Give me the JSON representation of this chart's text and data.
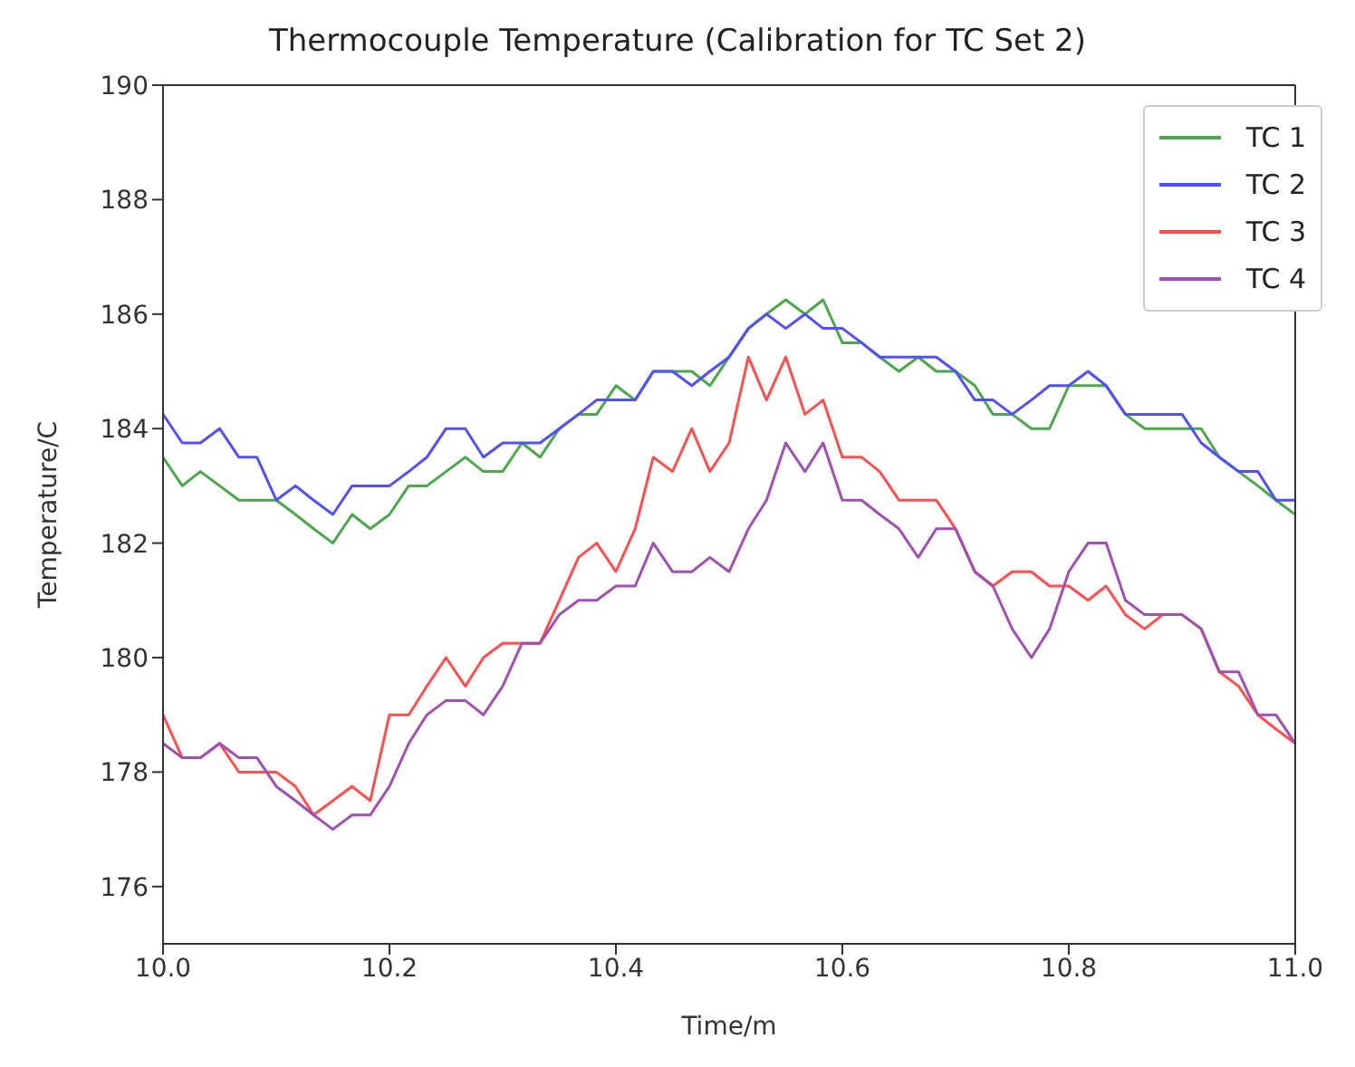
{
  "chart_data": {
    "type": "line",
    "title": "Thermocouple Temperature (Calibration for TC Set 2)",
    "xlabel": "Time/m",
    "ylabel": "Temperature/C",
    "x": [
      10.0,
      10.017,
      10.033,
      10.05,
      10.067,
      10.083,
      10.1,
      10.117,
      10.133,
      10.15,
      10.167,
      10.183,
      10.2,
      10.217,
      10.233,
      10.25,
      10.267,
      10.283,
      10.3,
      10.317,
      10.333,
      10.35,
      10.367,
      10.383,
      10.4,
      10.417,
      10.433,
      10.45,
      10.467,
      10.483,
      10.5,
      10.517,
      10.533,
      10.55,
      10.567,
      10.583,
      10.6,
      10.617,
      10.633,
      10.65,
      10.667,
      10.683,
      10.7,
      10.717,
      10.733,
      10.75,
      10.767,
      10.783,
      10.8,
      10.817,
      10.833,
      10.85,
      10.867,
      10.883,
      10.9,
      10.917,
      10.933,
      10.95,
      10.967,
      10.983,
      11.0
    ],
    "series": [
      {
        "name": "TC 1",
        "color": "#4ca64c",
        "values": [
          183.5,
          183.0,
          183.25,
          183.0,
          182.75,
          182.75,
          182.75,
          182.5,
          182.25,
          182.0,
          182.5,
          182.25,
          182.5,
          183.0,
          183.0,
          183.25,
          183.5,
          183.25,
          183.25,
          183.75,
          183.5,
          184.0,
          184.25,
          184.25,
          184.75,
          184.5,
          185.0,
          185.0,
          185.0,
          184.75,
          185.25,
          185.75,
          186.0,
          186.25,
          186.0,
          186.25,
          185.5,
          185.5,
          185.25,
          185.0,
          185.25,
          185.0,
          185.0,
          184.75,
          184.25,
          184.25,
          184.0,
          184.0,
          184.75,
          184.75,
          184.75,
          184.25,
          184.0,
          184.0,
          184.0,
          184.0,
          183.5,
          183.25,
          183.0,
          182.75,
          182.5
        ]
      },
      {
        "name": "TC 2",
        "color": "#5050ff",
        "values": [
          184.25,
          183.75,
          183.75,
          184.0,
          183.5,
          183.5,
          182.75,
          183.0,
          182.75,
          182.5,
          183.0,
          183.0,
          183.0,
          183.25,
          183.5,
          184.0,
          184.0,
          183.5,
          183.75,
          183.75,
          183.75,
          184.0,
          184.25,
          184.5,
          184.5,
          184.5,
          185.0,
          185.0,
          184.75,
          185.0,
          185.25,
          185.75,
          186.0,
          185.75,
          186.0,
          185.75,
          185.75,
          185.5,
          185.25,
          185.25,
          185.25,
          185.25,
          185.0,
          184.5,
          184.5,
          184.25,
          184.5,
          184.75,
          184.75,
          185.0,
          184.75,
          184.25,
          184.25,
          184.25,
          184.25,
          183.75,
          183.5,
          183.25,
          183.25,
          182.75,
          182.75
        ]
      },
      {
        "name": "TC 3",
        "color": "#ff4f4f",
        "values": [
          179.0,
          178.25,
          178.25,
          178.5,
          178.0,
          178.0,
          178.0,
          177.75,
          177.25,
          177.5,
          177.75,
          177.5,
          179.0,
          179.0,
          179.5,
          180.0,
          179.5,
          180.0,
          180.25,
          180.25,
          180.25,
          181.0,
          181.75,
          182.0,
          181.5,
          182.25,
          183.5,
          183.25,
          184.0,
          183.25,
          183.75,
          185.25,
          184.5,
          185.25,
          184.25,
          184.5,
          183.5,
          183.5,
          183.25,
          182.75,
          182.75,
          182.75,
          182.25,
          181.5,
          181.25,
          181.5,
          181.5,
          181.25,
          181.25,
          181.0,
          181.25,
          180.75,
          180.5,
          180.75,
          180.75,
          180.5,
          179.75,
          179.5,
          179.0,
          178.75,
          178.5
        ]
      },
      {
        "name": "TC 4",
        "color": "#a050b0",
        "values": [
          178.5,
          178.25,
          178.25,
          178.5,
          178.25,
          178.25,
          177.75,
          177.5,
          177.25,
          177.0,
          177.25,
          177.25,
          177.75,
          178.5,
          179.0,
          179.25,
          179.25,
          179.0,
          179.5,
          180.25,
          180.25,
          180.75,
          181.0,
          181.0,
          181.25,
          181.25,
          182.0,
          181.5,
          181.5,
          181.75,
          181.5,
          182.25,
          182.75,
          183.75,
          183.25,
          183.75,
          182.75,
          182.75,
          182.5,
          182.25,
          181.75,
          182.25,
          182.25,
          181.5,
          181.25,
          180.5,
          180.0,
          180.5,
          181.5,
          182.0,
          182.0,
          181.0,
          180.75,
          180.75,
          180.75,
          180.5,
          179.75,
          179.75,
          179.0,
          179.0,
          178.5
        ]
      }
    ],
    "xlim": [
      10,
      11
    ],
    "xticks": [
      {
        "value": 10,
        "label": "10.0"
      },
      {
        "value": 10.2,
        "label": "10.2"
      },
      {
        "value": 10.4,
        "label": "10.4"
      },
      {
        "value": 10.6,
        "label": "10.6"
      },
      {
        "value": 10.8,
        "label": "10.8"
      },
      {
        "value": 11,
        "label": "11.0"
      }
    ],
    "ylim": [
      175,
      190
    ],
    "yticks": [
      176,
      178,
      180,
      182,
      184,
      186,
      188,
      190
    ],
    "legend": "top right",
    "grid": false,
    "marker": "none",
    "line_style": "solid"
  }
}
